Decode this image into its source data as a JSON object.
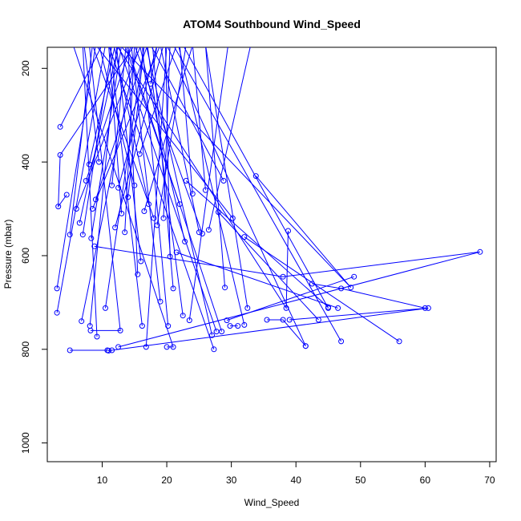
{
  "chart_data": {
    "type": "line",
    "title": "ATOM4 Southbound Wind_Speed",
    "xlabel": "Wind_Speed",
    "ylabel": "Pressure (mbar)",
    "xlim": [
      1.5,
      71
    ],
    "ylim": [
      1040,
      155
    ],
    "x_ticks": [
      10,
      20,
      30,
      40,
      50,
      60,
      70
    ],
    "y_ticks": [
      200,
      400,
      600,
      800,
      1000
    ],
    "grid": false,
    "color": "#0000ff",
    "series": [
      {
        "x": [
          4.5,
          3.2,
          3.5,
          15.0
        ],
        "y": [
          470,
          495,
          385,
          150
        ]
      },
      {
        "x": [
          3.5,
          10.0
        ],
        "y": [
          325,
          150
        ]
      },
      {
        "x": [
          3.0,
          9.0
        ],
        "y": [
          670,
          150
        ]
      },
      {
        "x": [
          3.0,
          10.5
        ],
        "y": [
          722,
          150
        ]
      },
      {
        "x": [
          5.0,
          8.5
        ],
        "y": [
          555,
          150
        ]
      },
      {
        "x": [
          6.0,
          16.0
        ],
        "y": [
          500,
          150
        ]
      },
      {
        "x": [
          6.5,
          12.5
        ],
        "y": [
          530,
          150
        ]
      },
      {
        "x": [
          7.0,
          11.5
        ],
        "y": [
          555,
          150
        ]
      },
      {
        "x": [
          7.5,
          14.5
        ],
        "y": [
          440,
          150
        ]
      },
      {
        "x": [
          8.0,
          12.0
        ],
        "y": [
          405,
          150
        ]
      },
      {
        "x": [
          8.5,
          19.0
        ],
        "y": [
          500,
          150
        ]
      },
      {
        "x": [
          9.0,
          17.0
        ],
        "y": [
          480,
          150
        ]
      },
      {
        "x": [
          9.5,
          7.2
        ],
        "y": [
          400,
          150
        ]
      },
      {
        "x": [
          8.3,
          13.0
        ],
        "y": [
          563,
          150
        ]
      },
      {
        "x": [
          6.8,
          15.5
        ],
        "y": [
          740,
          150
        ]
      },
      {
        "x": [
          8.1,
          12.3
        ],
        "y": [
          750,
          150
        ]
      },
      {
        "x": [
          8.2,
          12.8,
          8.0
        ],
        "y": [
          760,
          760,
          150
        ]
      },
      {
        "x": [
          9.2,
          7.0
        ],
        "y": [
          773,
          150
        ]
      },
      {
        "x": [
          8.8,
          38.0,
          68.5,
          12.5
        ],
        "y": [
          580,
          645,
          592,
          795
        ]
      },
      {
        "x": [
          10.5,
          16.5
        ],
        "y": [
          712,
          150
        ]
      },
      {
        "x": [
          11.5,
          13.7
        ],
        "y": [
          450,
          150
        ]
      },
      {
        "x": [
          12.0,
          19.5
        ],
        "y": [
          540,
          150
        ]
      },
      {
        "x": [
          12.5,
          18.5
        ],
        "y": [
          455,
          150
        ]
      },
      {
        "x": [
          13.0,
          11.0
        ],
        "y": [
          510,
          150
        ]
      },
      {
        "x": [
          13.5,
          15.0
        ],
        "y": [
          550,
          150
        ]
      },
      {
        "x": [
          14.0,
          16.5
        ],
        "y": [
          475,
          150
        ]
      },
      {
        "x": [
          15.0,
          9.5
        ],
        "y": [
          450,
          150
        ]
      },
      {
        "x": [
          15.5,
          14.0
        ],
        "y": [
          640,
          150
        ]
      },
      {
        "x": [
          15.8,
          21.5
        ],
        "y": [
          383,
          150
        ]
      },
      {
        "x": [
          16.0,
          12.2
        ],
        "y": [
          612,
          150
        ]
      },
      {
        "x": [
          16.2,
          11.2
        ],
        "y": [
          750,
          150
        ]
      },
      {
        "x": [
          16.5,
          24.0
        ],
        "y": [
          505,
          150
        ]
      },
      {
        "x": [
          16.8,
          20.0
        ],
        "y": [
          795,
          150
        ]
      },
      {
        "x": [
          17.2,
          11.8
        ],
        "y": [
          490,
          150
        ]
      },
      {
        "x": [
          17.5,
          18.5
        ],
        "y": [
          233,
          150
        ]
      },
      {
        "x": [
          18.0,
          8.5
        ],
        "y": [
          520,
          150
        ]
      },
      {
        "x": [
          18.5,
          23.0
        ],
        "y": [
          535,
          150
        ]
      },
      {
        "x": [
          19.0,
          14.5
        ],
        "y": [
          698,
          150
        ]
      },
      {
        "x": [
          19.5,
          20.5
        ],
        "y": [
          520,
          150
        ]
      },
      {
        "x": [
          20.0,
          21.0,
          5.5
        ],
        "y": [
          795,
          795,
          150
        ]
      },
      {
        "x": [
          20.2,
          16.2
        ],
        "y": [
          750,
          150
        ]
      },
      {
        "x": [
          20.5,
          19.8
        ],
        "y": [
          602,
          150
        ]
      },
      {
        "x": [
          21.0,
          17.8
        ],
        "y": [
          670,
          150
        ]
      },
      {
        "x": [
          21.5,
          46.5
        ],
        "y": [
          593,
          712
        ]
      },
      {
        "x": [
          22.0,
          13.5
        ],
        "y": [
          490,
          150
        ]
      },
      {
        "x": [
          22.5,
          17.0
        ],
        "y": [
          728,
          150
        ]
      },
      {
        "x": [
          22.8,
          15.8
        ],
        "y": [
          570,
          150
        ]
      },
      {
        "x": [
          23.0,
          45.0
        ],
        "y": [
          440,
          710
        ]
      },
      {
        "x": [
          23.5,
          29.5
        ],
        "y": [
          738,
          150
        ]
      },
      {
        "x": [
          24.0,
          22.0
        ],
        "y": [
          468,
          150
        ]
      },
      {
        "x": [
          25.0,
          19.0
        ],
        "y": [
          550,
          150
        ]
      },
      {
        "x": [
          25.5,
          15.0
        ],
        "y": [
          553,
          150
        ]
      },
      {
        "x": [
          26.0,
          24.0
        ],
        "y": [
          460,
          150
        ]
      },
      {
        "x": [
          26.5,
          33.0
        ],
        "y": [
          545,
          150
        ]
      },
      {
        "x": [
          27.0,
          16.8
        ],
        "y": [
          770,
          150
        ]
      },
      {
        "x": [
          27.3,
          11.0
        ],
        "y": [
          800,
          150
        ]
      },
      {
        "x": [
          27.7,
          12.5
        ],
        "y": [
          762,
          150
        ]
      },
      {
        "x": [
          28.0,
          43.5
        ],
        "y": [
          507,
          737
        ]
      },
      {
        "x": [
          28.8,
          17.5
        ],
        "y": [
          440,
          150
        ]
      },
      {
        "x": [
          28.5,
          13.8
        ],
        "y": [
          762,
          150
        ]
      },
      {
        "x": [
          29.0,
          26.0
        ],
        "y": [
          668,
          150
        ]
      },
      {
        "x": [
          29.3,
          49.0
        ],
        "y": [
          738,
          645
        ]
      },
      {
        "x": [
          29.8,
          31.0
        ],
        "y": [
          750,
          750
        ]
      },
      {
        "x": [
          30.2,
          9.0
        ],
        "y": [
          520,
          150
        ]
      },
      {
        "x": [
          32.0,
          21.8
        ],
        "y": [
          748,
          150
        ]
      },
      {
        "x": [
          32.5,
          26.0
        ],
        "y": [
          712,
          150
        ]
      },
      {
        "x": [
          32.0,
          56.0
        ],
        "y": [
          560,
          783
        ]
      },
      {
        "x": [
          33.8,
          48.5,
          12.7
        ],
        "y": [
          430,
          668,
          150
        ]
      },
      {
        "x": [
          35.5,
          38.0,
          41.5
        ],
        "y": [
          737,
          737,
          793
        ]
      },
      {
        "x": [
          38.8,
          38.5,
          12.2
        ],
        "y": [
          547,
          712,
          150
        ]
      },
      {
        "x": [
          39.0,
          60.5,
          11.0
        ],
        "y": [
          737,
          712,
          803
        ]
      },
      {
        "x": [
          41.5,
          20.0
        ],
        "y": [
          793,
          150
        ]
      },
      {
        "x": [
          42.5,
          47.0,
          60.0
        ],
        "y": [
          660,
          670,
          712
        ]
      },
      {
        "x": [
          45.0,
          22.5
        ],
        "y": [
          712,
          150
        ]
      },
      {
        "x": [
          47.0,
          21.0
        ],
        "y": [
          783,
          150
        ]
      },
      {
        "x": [
          5.0,
          10.8,
          11.5
        ],
        "y": [
          802,
          802,
          802
        ]
      }
    ]
  }
}
